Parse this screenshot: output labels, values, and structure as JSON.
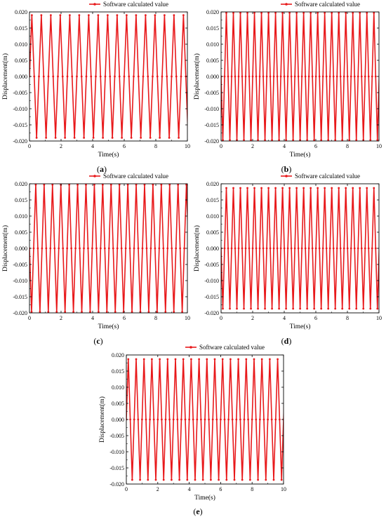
{
  "figure": {
    "colors": {
      "series": "#e8191b",
      "axis": "#000000",
      "background": "#ffffff"
    },
    "y_tick_labels": [
      "-0.020",
      "-0.015",
      "-0.010",
      "-0.005",
      "0.000",
      "0.005",
      "0.010",
      "0.015",
      "0.020"
    ],
    "x_tick_labels": [
      "0",
      "2",
      "4",
      "6",
      "8",
      "10"
    ]
  },
  "chart_data": [
    {
      "panel": "a",
      "type": "line",
      "xlabel": "Time(s)",
      "ylabel": "Displacement(m)",
      "xlim": [
        0,
        10
      ],
      "ylim": [
        -0.02,
        0.02
      ],
      "legend": "top-right",
      "grid": false,
      "series": [
        {
          "name": "Software calculated value",
          "period_s": 0.6,
          "amplitude_m": 0.019,
          "phase_start": "zero-rising"
        }
      ]
    },
    {
      "panel": "b",
      "type": "line",
      "xlabel": "Time(s)",
      "ylabel": "Displacement(m)",
      "xlim": [
        0,
        10
      ],
      "ylim": [
        -0.02,
        0.02
      ],
      "legend": "top-right",
      "grid": false,
      "series": [
        {
          "name": "Software calculated value",
          "period_s": 0.445,
          "amplitude_m": 0.0197,
          "phase_start": "zero-falling"
        }
      ]
    },
    {
      "panel": "c",
      "type": "line",
      "xlabel": "Time(s)",
      "ylabel": "Displacement(m)",
      "xlim": [
        0,
        10
      ],
      "ylim": [
        -0.02,
        0.02
      ],
      "legend": "top-right",
      "grid": false,
      "series": [
        {
          "name": "Software calculated value",
          "period_s": 0.53,
          "amplitude_m": 0.0197,
          "phase_start": "zero-falling"
        }
      ]
    },
    {
      "panel": "d",
      "type": "line",
      "xlabel": "Time(s)",
      "ylabel": "Displacement(m)",
      "xlim": [
        0,
        10
      ],
      "ylim": [
        -0.02,
        0.02
      ],
      "legend": "top-right",
      "grid": false,
      "series": [
        {
          "name": "Software calculated value",
          "period_s": 0.445,
          "amplitude_m": 0.0187,
          "phase_start": "zero-falling"
        }
      ]
    },
    {
      "panel": "e",
      "type": "line",
      "xlabel": "Time(s)",
      "ylabel": "Displacement(m)",
      "xlim": [
        0,
        10
      ],
      "ylim": [
        -0.02,
        0.02
      ],
      "legend": "top-right",
      "grid": false,
      "series": [
        {
          "name": "Software calculated value",
          "period_s": 0.5,
          "amplitude_m": 0.0187,
          "phase_start": "zero-rising"
        }
      ]
    }
  ],
  "panel_labels": [
    {
      "open": "(",
      "letter": "a",
      "close": ")"
    },
    {
      "open": "(",
      "letter": "b",
      "close": ")"
    },
    {
      "open": "(",
      "letter": "c",
      "close": ")"
    },
    {
      "open": "(",
      "letter": "d",
      "close": ")"
    },
    {
      "open": "(",
      "letter": "e",
      "close": ")"
    }
  ]
}
